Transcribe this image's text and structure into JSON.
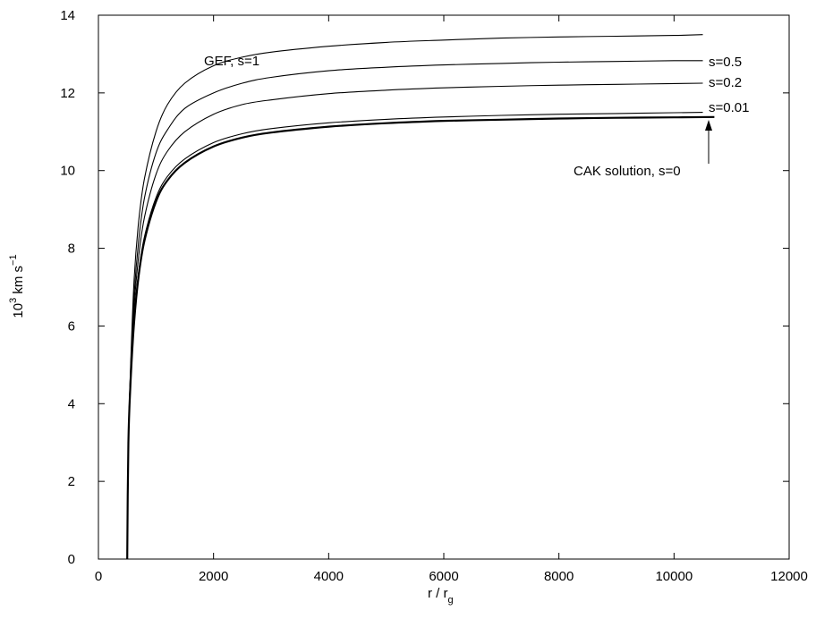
{
  "chart_data": {
    "type": "line",
    "xlabel": "r / r",
    "xlabel_sub": "g",
    "ylabel_base": "10",
    "ylabel_exp": "3",
    "ylabel_mid": " km s",
    "ylabel_exp2": "−1",
    "xlim": [
      0,
      12000
    ],
    "ylim": [
      0,
      14
    ],
    "xticks": [
      0,
      2000,
      4000,
      6000,
      8000,
      10000,
      12000
    ],
    "yticks": [
      0,
      2,
      4,
      6,
      8,
      10,
      12,
      14
    ],
    "xtick_labels": [
      "0",
      "2000",
      "4000",
      "6000",
      "8000",
      "10000",
      "12000"
    ],
    "ytick_labels": [
      "0",
      "2",
      "4",
      "6",
      "8",
      "10",
      "12",
      "14"
    ],
    "grid": false,
    "series": [
      {
        "name": "GEF, s=1",
        "x": [
          500,
          520,
          560,
          620,
          700,
          800,
          1000,
          1200,
          1500,
          2000,
          2500,
          3000,
          4000,
          5000,
          6000,
          7000,
          8000,
          9000,
          10000,
          10500
        ],
        "y": [
          0.0,
          3.0,
          5.0,
          7.2,
          8.7,
          9.8,
          11.0,
          11.7,
          12.25,
          12.7,
          12.92,
          13.05,
          13.2,
          13.3,
          13.36,
          13.41,
          13.44,
          13.46,
          13.48,
          13.5
        ]
      },
      {
        "name": "s=0.5",
        "x": [
          500,
          520,
          560,
          620,
          700,
          800,
          1000,
          1200,
          1500,
          2000,
          2500,
          3000,
          4000,
          5000,
          6000,
          7000,
          8000,
          9000,
          10000,
          10500
        ],
        "y": [
          0.0,
          3.0,
          4.9,
          6.8,
          8.2,
          9.3,
          10.45,
          11.05,
          11.6,
          12.0,
          12.25,
          12.4,
          12.57,
          12.66,
          12.72,
          12.76,
          12.79,
          12.81,
          12.83,
          12.83
        ]
      },
      {
        "name": "s=0.2",
        "x": [
          500,
          520,
          560,
          620,
          700,
          800,
          1000,
          1200,
          1500,
          2000,
          2500,
          3000,
          4000,
          5000,
          6000,
          7000,
          8000,
          9000,
          10000,
          10500
        ],
        "y": [
          0.0,
          3.0,
          4.8,
          6.5,
          7.8,
          8.8,
          9.9,
          10.5,
          11.0,
          11.45,
          11.7,
          11.82,
          11.98,
          12.07,
          12.13,
          12.17,
          12.2,
          12.22,
          12.24,
          12.25
        ]
      },
      {
        "name": "s=0.01",
        "x": [
          500,
          520,
          560,
          620,
          700,
          800,
          1000,
          1200,
          1500,
          2000,
          2500,
          3000,
          4000,
          5000,
          6000,
          7000,
          8000,
          9000,
          10000,
          10500
        ],
        "y": [
          0.0,
          3.0,
          4.7,
          6.2,
          7.4,
          8.3,
          9.3,
          9.85,
          10.3,
          10.72,
          10.95,
          11.08,
          11.23,
          11.32,
          11.38,
          11.42,
          11.45,
          11.47,
          11.49,
          11.5
        ]
      },
      {
        "name": "CAK solution, s=0",
        "x": [
          500,
          520,
          560,
          620,
          700,
          800,
          1000,
          1200,
          1500,
          2000,
          2500,
          3000,
          4000,
          5000,
          6000,
          7000,
          8000,
          9000,
          10000,
          10700
        ],
        "y": [
          0.0,
          3.0,
          4.6,
          6.1,
          7.3,
          8.2,
          9.2,
          9.75,
          10.2,
          10.62,
          10.85,
          10.98,
          11.13,
          11.22,
          11.28,
          11.31,
          11.34,
          11.36,
          11.37,
          11.38
        ]
      }
    ],
    "annotations": [
      {
        "text": "GEF, s=1"
      },
      {
        "text": "s=0.5"
      },
      {
        "text": "s=0.2"
      },
      {
        "text": "s=0.01"
      },
      {
        "text": "CAK solution, s=0"
      }
    ]
  }
}
